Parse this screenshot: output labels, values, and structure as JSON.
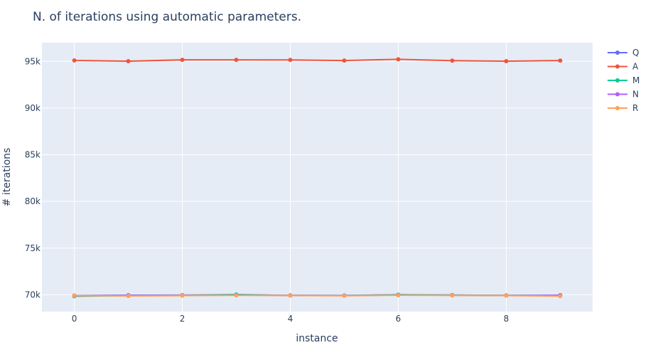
{
  "chart_data": {
    "type": "line",
    "title": "N. of iterations using automatic parameters.",
    "xlabel": "instance",
    "ylabel": "# iterations",
    "x": [
      0,
      1,
      2,
      3,
      4,
      5,
      6,
      7,
      8,
      9
    ],
    "xlim": [
      -0.6,
      9.6
    ],
    "ylim": [
      68200,
      97000
    ],
    "x_ticks": [
      0,
      2,
      4,
      6,
      8
    ],
    "y_ticks": [
      70000,
      75000,
      80000,
      85000,
      90000,
      95000
    ],
    "y_tick_labels": [
      "70k",
      "75k",
      "80k",
      "85k",
      "90k",
      "95k"
    ],
    "grid": true,
    "legend_position": "top-right",
    "background_color": "#e5ecf6",
    "series": [
      {
        "name": "Q",
        "color": "#636efa",
        "values": [
          69920,
          69950,
          69960,
          69980,
          69940,
          69920,
          70000,
          69960,
          69930,
          69950
        ]
      },
      {
        "name": "A",
        "color": "#ef553b",
        "values": [
          95100,
          95020,
          95160,
          95160,
          95150,
          95090,
          95220,
          95080,
          95020,
          95090
        ]
      },
      {
        "name": "M",
        "color": "#00cc96",
        "values": [
          69850,
          69900,
          69950,
          70030,
          69930,
          69920,
          70010,
          69970,
          69930,
          69900
        ]
      },
      {
        "name": "N",
        "color": "#ab63fa",
        "values": [
          69900,
          69920,
          69940,
          69960,
          69930,
          69910,
          69970,
          69940,
          69920,
          69930
        ]
      },
      {
        "name": "R",
        "color": "#ffa15a",
        "values": [
          69920,
          69880,
          69910,
          69940,
          69920,
          69900,
          69950,
          69930,
          69910,
          69860
        ]
      }
    ]
  }
}
